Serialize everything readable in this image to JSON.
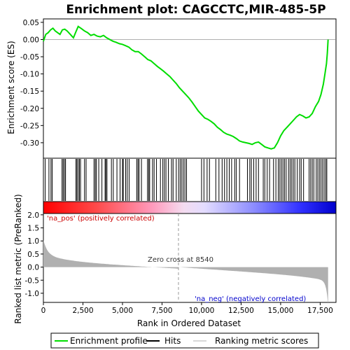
{
  "chart_data": {
    "type": "line",
    "title": "Enrichment plot: CAGCCTC,MIR-485-5P",
    "xlabel": "Rank in Ordered Dataset",
    "ylabel_top": "Enrichment score (ES)",
    "ylabel_bottom": "Ranked list metric (PreRanked)",
    "xlim": [
      0,
      18500
    ],
    "ylim_top": [
      -0.345,
      0.06
    ],
    "ylim_bottom": [
      -1.35,
      2.05
    ],
    "x_ticks": [
      "0",
      "2,500",
      "5,000",
      "7,500",
      "10,000",
      "12,500",
      "15,000",
      "17,500"
    ],
    "x_tick_values": [
      0,
      2500,
      5000,
      7500,
      10000,
      12500,
      15000,
      17500
    ],
    "y_ticks_top": [
      "0.05",
      "0.00",
      "-0.05",
      "-0.10",
      "-0.15",
      "-0.20",
      "-0.25",
      "-0.30"
    ],
    "y_tick_values_top": [
      0.05,
      0.0,
      -0.05,
      -0.1,
      -0.15,
      -0.2,
      -0.25,
      -0.3
    ],
    "y_ticks_bottom": [
      "2.0",
      "1.5",
      "1.0",
      "0.5",
      "0.0",
      "-0.5",
      "-1.0"
    ],
    "y_tick_values_bottom": [
      2.0,
      1.5,
      1.0,
      0.5,
      0.0,
      -0.5,
      -1.0
    ],
    "n_genes": 18000,
    "zero_cross": 8540,
    "zero_cross_label": "Zero cross at 8540",
    "pos_label": "'na_pos' (positively correlated)",
    "neg_label": "'na_neg' (negatively correlated)",
    "colors": {
      "es_line": "#00dd00",
      "hits": "#000000",
      "metric_fill": "#b0b0b0",
      "pos_label": "#ff0000",
      "neg_label": "#0000cc",
      "heat_pos": "#ff0000",
      "heat_neg": "#0000ff"
    },
    "es_profile": {
      "x": [
        0,
        150,
        300,
        450,
        600,
        750,
        900,
        1050,
        1200,
        1350,
        1500,
        1700,
        1900,
        2050,
        2200,
        2400,
        2600,
        2800,
        3000,
        3200,
        3400,
        3600,
        3800,
        4000,
        4200,
        4400,
        4600,
        4800,
        5000,
        5200,
        5400,
        5600,
        5800,
        6000,
        6200,
        6400,
        6600,
        6800,
        7000,
        7200,
        7400,
        7600,
        7800,
        8000,
        8200,
        8400,
        8600,
        8800,
        9000,
        9200,
        9400,
        9600,
        9800,
        10000,
        10200,
        10400,
        10600,
        10800,
        11000,
        11200,
        11400,
        11600,
        11800,
        12000,
        12200,
        12400,
        12600,
        12800,
        13000,
        13200,
        13400,
        13600,
        13800,
        14000,
        14200,
        14400,
        14600,
        14800,
        15000,
        15200,
        15400,
        15600,
        15800,
        16000,
        16200,
        16400,
        16600,
        16800,
        17000,
        17200,
        17400,
        17550,
        17700,
        17800,
        17900,
        17950,
        18000
      ],
      "y": [
        -0.005,
        0.015,
        0.02,
        0.028,
        0.033,
        0.025,
        0.02,
        0.015,
        0.028,
        0.03,
        0.025,
        0.015,
        0.005,
        0.022,
        0.038,
        0.032,
        0.025,
        0.02,
        0.012,
        0.015,
        0.01,
        0.008,
        0.012,
        0.005,
        0.0,
        -0.005,
        -0.008,
        -0.012,
        -0.014,
        -0.018,
        -0.022,
        -0.03,
        -0.035,
        -0.035,
        -0.042,
        -0.05,
        -0.058,
        -0.062,
        -0.07,
        -0.078,
        -0.085,
        -0.092,
        -0.1,
        -0.108,
        -0.118,
        -0.128,
        -0.14,
        -0.15,
        -0.16,
        -0.17,
        -0.182,
        -0.195,
        -0.208,
        -0.218,
        -0.228,
        -0.232,
        -0.238,
        -0.245,
        -0.255,
        -0.262,
        -0.27,
        -0.275,
        -0.278,
        -0.282,
        -0.288,
        -0.295,
        -0.298,
        -0.3,
        -0.302,
        -0.305,
        -0.3,
        -0.298,
        -0.305,
        -0.312,
        -0.315,
        -0.318,
        -0.315,
        -0.3,
        -0.28,
        -0.265,
        -0.255,
        -0.245,
        -0.235,
        -0.225,
        -0.218,
        -0.222,
        -0.228,
        -0.225,
        -0.215,
        -0.195,
        -0.18,
        -0.16,
        -0.13,
        -0.1,
        -0.07,
        -0.04,
        0.0
      ]
    },
    "hits": [
      110,
      350,
      480,
      560,
      1180,
      1250,
      1330,
      1400,
      2060,
      2120,
      2200,
      2280,
      2350,
      2600,
      2700,
      3200,
      3280,
      3350,
      3500,
      3700,
      3900,
      3950,
      4020,
      4300,
      4420,
      4650,
      4850,
      5000,
      5050,
      5200,
      5300,
      5420,
      5900,
      5980,
      6050,
      6200,
      6580,
      6660,
      6720,
      6900,
      7000,
      7150,
      7400,
      7550,
      7650,
      7750,
      7900,
      8100,
      8200,
      8400,
      8550,
      8650,
      8750,
      8850,
      8950,
      9050,
      10000,
      10150,
      10350,
      10500,
      10900,
      11100,
      11300,
      11450,
      11600,
      11750,
      11900,
      12100,
      12200,
      12400,
      12900,
      13050,
      13150,
      13300,
      13450,
      13600,
      13900,
      14000,
      14150,
      14300,
      14550,
      14700,
      14850,
      14950,
      15050,
      15150,
      15250,
      15350,
      15500,
      15600,
      15700,
      15800,
      15900,
      16050,
      16200,
      16300,
      16450,
      16800,
      16900,
      17000,
      17100,
      17250,
      17350,
      17450,
      17550,
      17650,
      17750,
      17850,
      17920
    ]
  },
  "legend": {
    "items": [
      {
        "label": "Enrichment profile",
        "kind": "line",
        "color": "#00dd00"
      },
      {
        "label": "Hits",
        "kind": "line",
        "color": "#000000"
      },
      {
        "label": "Ranking metric scores",
        "kind": "line",
        "color": "#b0b0b0"
      }
    ]
  }
}
